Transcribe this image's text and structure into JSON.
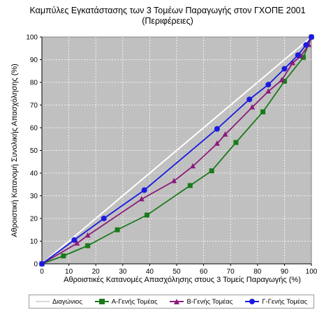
{
  "chart_data": {
    "type": "line",
    "title": "Καμπύλες Εγκατάστασης των 3 Τομέων Παραγωγής στον ΓΧΟΠΕ  2001 (Περιφέρειες)",
    "xlabel": "Αθροιστικές Κατανομές Απασχόλησης στους 3 Τομείς Παραγωγής (%)",
    "ylabel": "Αθροιστική Κατανομή Συνολικής Απασχόλησης (%)",
    "xlim": [
      0,
      100
    ],
    "ylim": [
      0,
      100
    ],
    "xticks": [
      "0",
      "10",
      "20",
      "30",
      "40",
      "50",
      "60",
      "70",
      "80",
      "90",
      "100"
    ],
    "yticks": [
      "0",
      "10",
      "20",
      "30",
      "40",
      "50",
      "60",
      "70",
      "80",
      "90",
      "100"
    ],
    "grid": true,
    "legend_position": "bottom",
    "series": [
      {
        "name": "Διαγώνιος",
        "color": "#ffffff",
        "marker": "none",
        "x": [
          0,
          100
        ],
        "y": [
          0,
          100
        ]
      },
      {
        "name": "Α-Γενής Τομέας",
        "color": "#1a7a1a",
        "marker": "square",
        "x": [
          0,
          8,
          17,
          28,
          39,
          55,
          63,
          72,
          82,
          90,
          97,
          100
        ],
        "y": [
          0,
          3.5,
          8,
          15,
          21.5,
          34.5,
          41,
          53.5,
          67,
          80.5,
          91,
          100
        ]
      },
      {
        "name": "Β-Γενής Τομέας",
        "color": "#8b1a7a",
        "marker": "triangle",
        "x": [
          0,
          13,
          17,
          37,
          49,
          56,
          65,
          68,
          78,
          84,
          89,
          93,
          96,
          99,
          100
        ],
        "y": [
          0,
          9,
          12.5,
          28.5,
          36.5,
          43,
          53,
          57,
          69,
          76,
          81,
          88.5,
          91.5,
          96.5,
          100
        ]
      },
      {
        "name": "Γ-Γενής Τομέας",
        "color": "#1a1ae0",
        "marker": "circle",
        "x": [
          0,
          12,
          23,
          38,
          65,
          77,
          84,
          90,
          95,
          98,
          100
        ],
        "y": [
          0,
          10.5,
          20,
          32.5,
          59.5,
          72.5,
          79,
          86,
          92,
          96.5,
          100
        ]
      }
    ]
  }
}
